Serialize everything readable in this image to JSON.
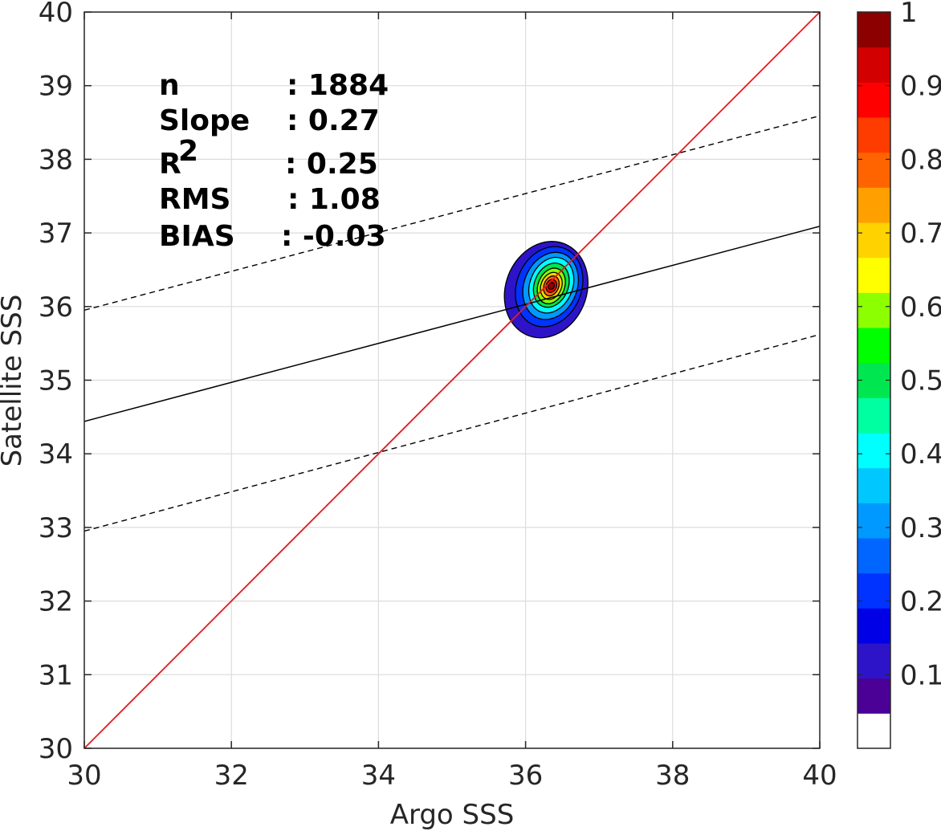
{
  "chart_data": {
    "type": "contour",
    "xlabel": "Argo SSS",
    "ylabel": "Satellite SSS",
    "xlim": [
      30,
      40
    ],
    "ylim": [
      30,
      40
    ],
    "xticks": [
      "30",
      "32",
      "34",
      "36",
      "38",
      "40"
    ],
    "yticks": [
      "30",
      "31",
      "32",
      "33",
      "34",
      "35",
      "36",
      "37",
      "38",
      "39",
      "40"
    ],
    "grid": true,
    "stats": [
      {
        "label": "n",
        "value": ": 1884"
      },
      {
        "label": "Slope",
        "value": ": 0.27"
      },
      {
        "label": "R",
        "sup": "2",
        "value": ": 0.25"
      },
      {
        "label": "RMS",
        "value": ": 1.08"
      },
      {
        "label": "BIAS",
        "value": ": -0.03"
      }
    ],
    "one_to_one_line": {
      "x": [
        30,
        40
      ],
      "y": [
        30,
        40
      ],
      "color": "#e41a1c"
    },
    "fit_line": {
      "x": [
        30,
        40
      ],
      "y": [
        34.44,
        37.09
      ],
      "color": "#000000"
    },
    "fit_bounds": [
      {
        "x": [
          30,
          40
        ],
        "y": [
          35.95,
          38.59
        ],
        "style": "dashed"
      },
      {
        "x": [
          30,
          40
        ],
        "y": [
          32.95,
          35.62
        ],
        "style": "dashed"
      }
    ],
    "density_peak": {
      "x": 36.35,
      "y": 36.28
    },
    "contour_levels": [
      {
        "level": 0.05,
        "rx": 0.55,
        "ry": 0.67,
        "dx": -0.07,
        "dy": -0.05
      },
      {
        "level": 0.15,
        "rx": 0.44,
        "ry": 0.56,
        "dx": -0.03,
        "dy": -0.01
      },
      {
        "level": 0.25,
        "rx": 0.36,
        "ry": 0.47,
        "dx": -0.01,
        "dy": 0.0
      },
      {
        "level": 0.35,
        "rx": 0.29,
        "ry": 0.39,
        "dx": 0.0,
        "dy": 0.01
      },
      {
        "level": 0.45,
        "rx": 0.23,
        "ry": 0.31,
        "dx": 0.0,
        "dy": 0.01
      },
      {
        "level": 0.55,
        "rx": 0.18,
        "ry": 0.25,
        "dx": 0.0,
        "dy": 0.0
      },
      {
        "level": 0.65,
        "rx": 0.14,
        "ry": 0.19,
        "dx": 0.0,
        "dy": 0.0
      },
      {
        "level": 0.75,
        "rx": 0.1,
        "ry": 0.14,
        "dx": 0.0,
        "dy": 0.0
      },
      {
        "level": 0.85,
        "rx": 0.07,
        "ry": 0.09,
        "dx": 0.0,
        "dy": 0.0
      },
      {
        "level": 0.95,
        "rx": 0.04,
        "ry": 0.05,
        "dx": 0.0,
        "dy": 0.0
      }
    ],
    "colorbar": {
      "range": [
        0,
        1
      ],
      "ticks": [
        "0.1",
        "0.2",
        "0.3",
        "0.4",
        "0.5",
        "0.6",
        "0.7",
        "0.8",
        "0.9",
        "1"
      ],
      "colors": [
        "#ffffff",
        "#4b0096",
        "#2d14c8",
        "#0000e6",
        "#0033ff",
        "#0066ff",
        "#0099ff",
        "#00c8ff",
        "#00ffff",
        "#00ffa0",
        "#00e650",
        "#00ff00",
        "#8cff00",
        "#ffff00",
        "#ffd200",
        "#ffa000",
        "#ff6400",
        "#ff3c00",
        "#ff0000",
        "#d20000",
        "#8c0000"
      ]
    }
  }
}
